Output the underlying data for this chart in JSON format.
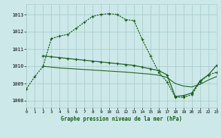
{
  "bg_color": "#cce8e8",
  "grid_color": "#aacccc",
  "line_color": "#1a5c1a",
  "title": "Graphe pression niveau de la mer (hPa)",
  "xlim": [
    0,
    23
  ],
  "ylim": [
    1007.6,
    1013.6
  ],
  "yticks": [
    1008,
    1009,
    1010,
    1011,
    1012,
    1013
  ],
  "xticks": [
    0,
    1,
    2,
    3,
    4,
    5,
    6,
    7,
    8,
    9,
    10,
    11,
    12,
    13,
    14,
    15,
    16,
    17,
    18,
    19,
    20,
    21,
    22,
    23
  ],
  "s1_x": [
    0,
    1,
    2,
    3,
    4,
    5,
    6,
    7,
    8,
    9,
    10,
    11,
    12,
    13,
    14,
    15,
    16,
    17,
    18,
    19,
    20,
    21,
    22,
    23
  ],
  "s1_y": [
    1008.7,
    1009.4,
    1010.0,
    1011.6,
    1011.75,
    1011.85,
    1012.2,
    1012.55,
    1012.9,
    1013.0,
    1013.05,
    1013.0,
    1012.7,
    1012.65,
    1011.55,
    1010.6,
    1009.65,
    1009.1,
    1008.2,
    1008.2,
    1008.35,
    1009.1,
    1009.5,
    1009.65
  ],
  "s2_x": [
    2,
    3,
    4,
    5,
    6,
    7,
    8,
    9,
    10,
    11,
    12,
    13,
    14,
    15,
    16,
    17,
    18,
    19,
    20,
    21,
    22,
    23
  ],
  "s2_y": [
    1010.6,
    1010.55,
    1010.5,
    1010.45,
    1010.4,
    1010.35,
    1010.3,
    1010.25,
    1010.2,
    1010.15,
    1010.1,
    1010.05,
    1009.95,
    1009.85,
    1009.75,
    1009.5,
    1008.25,
    1008.3,
    1008.45,
    1009.15,
    1009.5,
    1010.05
  ],
  "s3_x": [
    2,
    3,
    4,
    5,
    6,
    7,
    8,
    9,
    10,
    11,
    12,
    13,
    14,
    15,
    16,
    17,
    18,
    19,
    20,
    21,
    22,
    23
  ],
  "s3_y": [
    1010.0,
    1009.95,
    1009.9,
    1009.87,
    1009.84,
    1009.81,
    1009.78,
    1009.75,
    1009.72,
    1009.69,
    1009.66,
    1009.62,
    1009.58,
    1009.54,
    1009.48,
    1009.35,
    1009.0,
    1008.85,
    1008.8,
    1008.95,
    1009.2,
    1009.4
  ]
}
